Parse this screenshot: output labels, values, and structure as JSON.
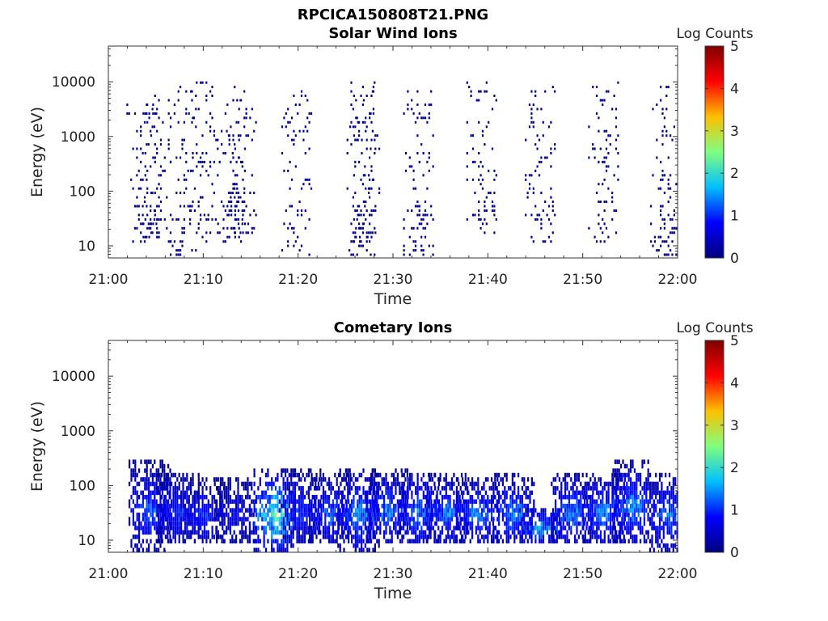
{
  "figure": {
    "title": "RPCICA150808T21.PNG"
  },
  "colorbar": {
    "label": "Log Counts",
    "ticks": [
      "0",
      "1",
      "2",
      "3",
      "4",
      "5"
    ],
    "stops": [
      "#00007f",
      "#0000ff",
      "#00bfff",
      "#7fff7f",
      "#ffbf00",
      "#ff0000",
      "#7f0000"
    ]
  },
  "chart_data": [
    {
      "type": "heatmap",
      "title": "Solar Wind Ions",
      "xlabel": "Time",
      "ylabel": "Energy (eV)",
      "x_ticks": [
        "21:00",
        "21:10",
        "21:20",
        "21:30",
        "21:40",
        "21:50",
        "22:00"
      ],
      "xlim": [
        "21:00",
        "22:00"
      ],
      "y_ticks": [
        "10",
        "100",
        "1000",
        "10000"
      ],
      "ylim": [
        6,
        45000
      ],
      "y_scale": "log",
      "clim": [
        0,
        5
      ],
      "bursts": [
        {
          "time": "21:03:30",
          "emin": 10,
          "emax": 4000,
          "peak": 0.3
        },
        {
          "time": "21:05:00",
          "emin": 10,
          "emax": 6000,
          "peak": 0.3
        },
        {
          "time": "21:07:40",
          "emin": 6,
          "emax": 8000,
          "peak": 0.3
        },
        {
          "time": "21:10:00",
          "emin": 10,
          "emax": 10000,
          "peak": 0.3
        },
        {
          "time": "21:12:50",
          "emin": 10,
          "emax": 5000,
          "peak": 0.3
        },
        {
          "time": "21:14:00",
          "emin": 15,
          "emax": 11000,
          "peak": 0.3
        },
        {
          "time": "21:19:50",
          "emin": 6,
          "emax": 8000,
          "peak": 0.3
        },
        {
          "time": "21:26:30",
          "emin": 6,
          "emax": 10000,
          "peak": 0.3
        },
        {
          "time": "21:27:00",
          "emin": 10,
          "emax": 9000,
          "peak": 0.3
        },
        {
          "time": "21:32:40",
          "emin": 6,
          "emax": 8000,
          "peak": 0.3
        },
        {
          "time": "21:39:20",
          "emin": 15,
          "emax": 11000,
          "peak": 0.3
        },
        {
          "time": "21:45:30",
          "emin": 10,
          "emax": 8000,
          "peak": 0.4
        },
        {
          "time": "21:52:10",
          "emin": 10,
          "emax": 15000,
          "peak": 0.4
        },
        {
          "time": "21:58:30",
          "emin": 6,
          "emax": 8000,
          "peak": 0.3
        }
      ]
    },
    {
      "type": "heatmap",
      "title": "Cometary Ions",
      "xlabel": "Time",
      "ylabel": "Energy (eV)",
      "x_ticks": [
        "21:00",
        "21:10",
        "21:20",
        "21:30",
        "21:40",
        "21:50",
        "22:00"
      ],
      "xlim": [
        "21:00",
        "22:00"
      ],
      "y_ticks": [
        "10",
        "100",
        "1000",
        "10000"
      ],
      "ylim": [
        6,
        45000
      ],
      "y_scale": "log",
      "clim": [
        0,
        5
      ],
      "bursts": [
        {
          "time": "21:04:20",
          "emin": 6,
          "emax": 280,
          "peak": 1.4
        },
        {
          "time": "21:07:20",
          "emin": 8,
          "emax": 180,
          "peak": 1.2
        },
        {
          "time": "21:10:00",
          "emin": 8,
          "emax": 140,
          "peak": 1.2
        },
        {
          "time": "21:13:20",
          "emin": 8,
          "emax": 150,
          "peak": 0.9
        },
        {
          "time": "21:17:30",
          "emin": 6,
          "emax": 200,
          "peak": 2.6
        },
        {
          "time": "21:20:10",
          "emin": 8,
          "emax": 200,
          "peak": 1.2
        },
        {
          "time": "21:23:20",
          "emin": 8,
          "emax": 160,
          "peak": 1.5
        },
        {
          "time": "21:26:20",
          "emin": 6,
          "emax": 200,
          "peak": 1.7
        },
        {
          "time": "21:29:20",
          "emin": 8,
          "emax": 190,
          "peak": 1.6
        },
        {
          "time": "21:32:40",
          "emin": 8,
          "emax": 180,
          "peak": 1.6
        },
        {
          "time": "21:35:40",
          "emin": 8,
          "emax": 170,
          "peak": 1.6
        },
        {
          "time": "21:38:50",
          "emin": 8,
          "emax": 150,
          "peak": 1.7
        },
        {
          "time": "21:42:40",
          "emin": 8,
          "emax": 170,
          "peak": 1.7
        },
        {
          "time": "21:45:30",
          "emin": 8,
          "emax": 40,
          "peak": 1.9
        },
        {
          "time": "21:48:50",
          "emin": 8,
          "emax": 180,
          "peak": 1.6
        },
        {
          "time": "21:52:10",
          "emin": 8,
          "emax": 180,
          "peak": 1.7
        },
        {
          "time": "21:55:20",
          "emin": 8,
          "emax": 300,
          "peak": 1.7
        },
        {
          "time": "21:59:00",
          "emin": 6,
          "emax": 180,
          "peak": 1.5
        }
      ]
    }
  ]
}
